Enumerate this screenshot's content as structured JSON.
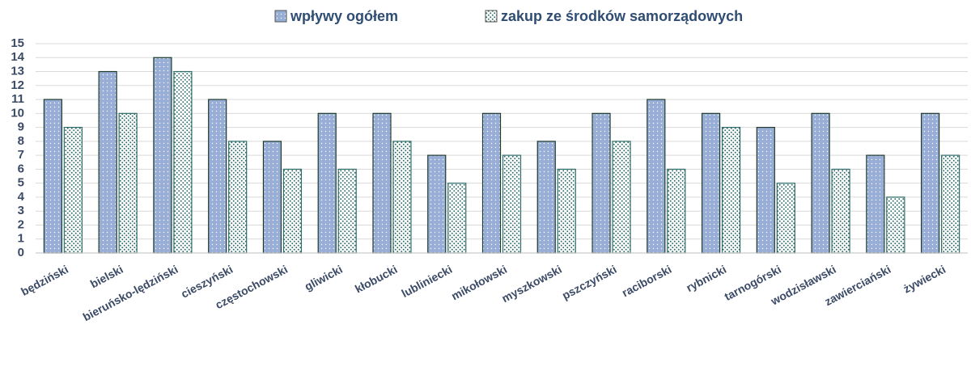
{
  "chart_data": {
    "type": "bar",
    "categories": [
      "będziński",
      "bielski",
      "bieruńsko-lędziński",
      "cieszyński",
      "częstochowski",
      "gliwicki",
      "kłobucki",
      "lubliniecki",
      "mikołowski",
      "myszkowski",
      "pszczyński",
      "raciborski",
      "rybnicki",
      "tarnogórski",
      "wodzisławski",
      "zawierciański",
      "żywiecki"
    ],
    "series": [
      {
        "name": "wpływy ogółem",
        "color": "#98aed6",
        "values": [
          11,
          13,
          14,
          11,
          8,
          10,
          10,
          7,
          10,
          8,
          10,
          11,
          10,
          9,
          10,
          7,
          10
        ]
      },
      {
        "name": "zakup ze środków samorządowych",
        "color": "#2f6e6a",
        "values": [
          9,
          10,
          13,
          8,
          6,
          6,
          8,
          5,
          7,
          6,
          8,
          6,
          9,
          5,
          6,
          4,
          7
        ]
      }
    ],
    "ylim": [
      0,
      15
    ],
    "yticks": [
      0,
      1,
      2,
      3,
      4,
      5,
      6,
      7,
      8,
      9,
      10,
      11,
      12,
      13,
      14,
      15
    ],
    "grid": true,
    "legend": "top"
  }
}
